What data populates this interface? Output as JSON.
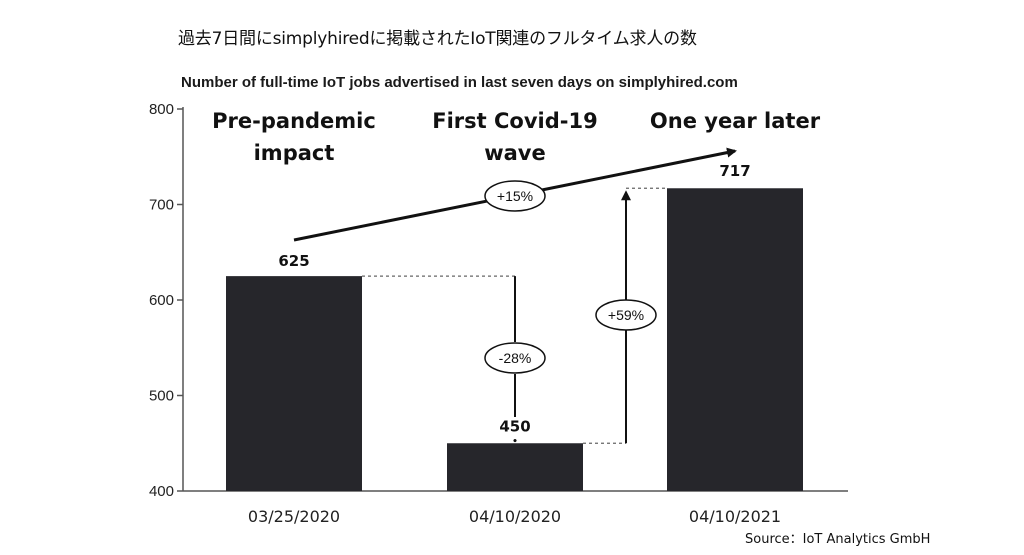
{
  "header": {
    "title": "過去7日間にsimplyhiredに掲載されたIoT関連のフルタイム求人の数"
  },
  "footer": {
    "source": "Source：IoT Analytics GmbH"
  },
  "colors": {
    "bar": "#26262b",
    "axis": "#555555",
    "text": "#111111"
  },
  "chart_data": {
    "type": "bar",
    "title": "Number of full-time IoT jobs advertised in last seven days on simplyhired.com",
    "xlabel": "",
    "ylabel": "",
    "categories": [
      "03/25/2020",
      "04/10/2020",
      "04/10/2021"
    ],
    "values": [
      625,
      450,
      717
    ],
    "value_labels": [
      "625",
      "450",
      "717"
    ],
    "phase_labels": [
      [
        "Pre-pandemic",
        "impact"
      ],
      [
        "First Covid-19",
        "wave"
      ],
      [
        "One year later"
      ]
    ],
    "ylim": [
      400,
      800
    ],
    "yticks": [
      400,
      500,
      600,
      700,
      800
    ],
    "grid": false,
    "legend": "none",
    "annotations": {
      "decline": "-28%",
      "recovery": "+59%",
      "overall": "+15%"
    }
  }
}
